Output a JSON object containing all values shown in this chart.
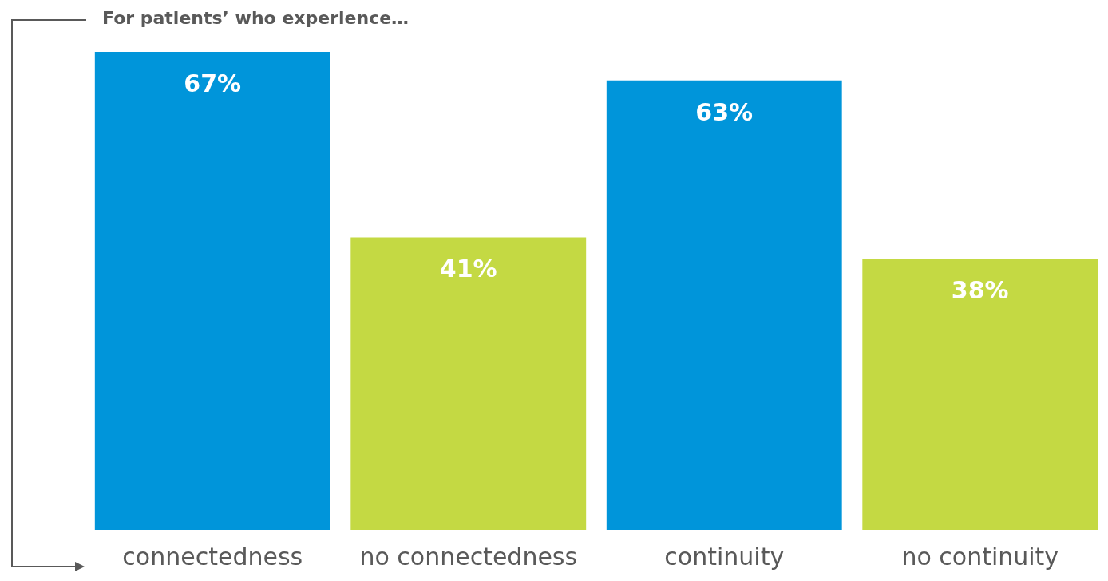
{
  "chart_data": {
    "type": "bar",
    "title": "For patients’ who experience…",
    "categories": [
      "connectedness",
      "no connectedness",
      "continuity",
      "no continuity"
    ],
    "values": [
      67,
      41,
      63,
      38
    ],
    "colors": [
      "#0095da",
      "#c4d943",
      "#0095da",
      "#c4d943"
    ],
    "value_labels": [
      "67%",
      "41%",
      "63%",
      "38%"
    ],
    "grid": false,
    "legend": false
  }
}
